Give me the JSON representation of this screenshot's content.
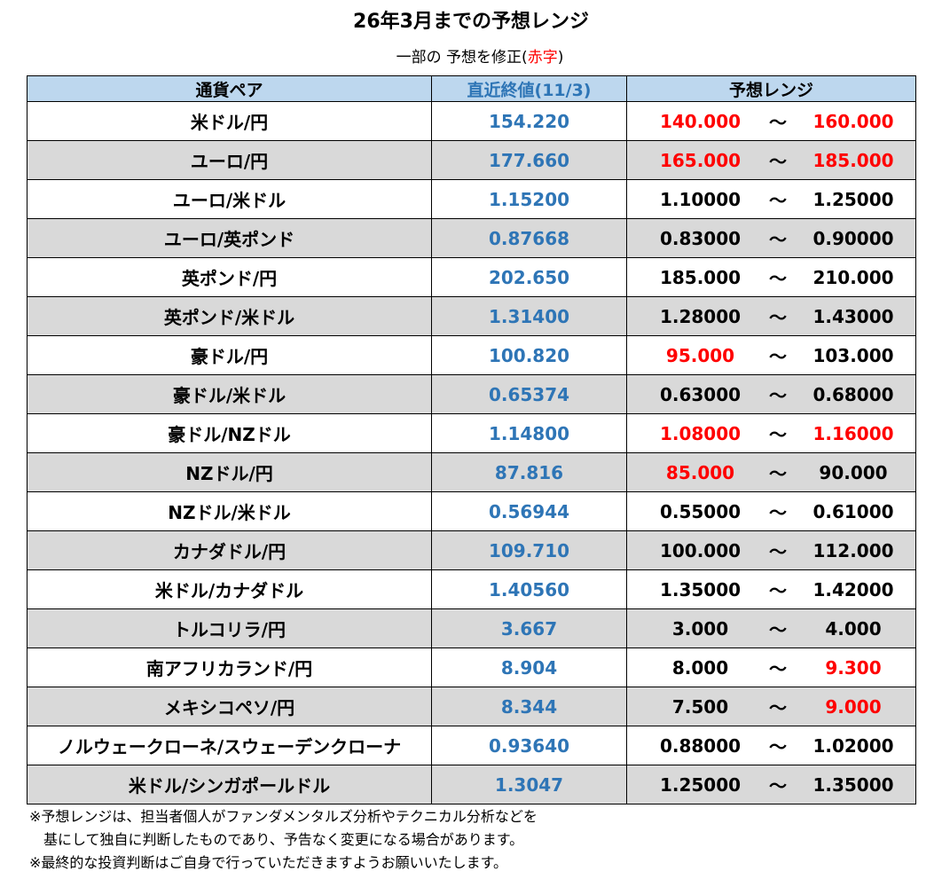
{
  "title": "26年3月までの予想レンジ",
  "subtitle": {
    "prefix": "一部の 予想を修正(",
    "red": "赤字",
    "suffix": ")"
  },
  "headers": {
    "pair": "通貨ペア",
    "latest": "直近終値(11/3)",
    "range": "予想レンジ"
  },
  "colors": {
    "header_bg": "#bdd7ee",
    "alt_row": "#d9d9d9",
    "latest": "#2e75b6",
    "revised": "#ff0000"
  },
  "tilde": "～",
  "rows": [
    {
      "pair": "米ドル/円",
      "latest": "154.220",
      "low": "140.000",
      "high": "160.000",
      "low_revised": true,
      "high_revised": true
    },
    {
      "pair": "ユーロ/円",
      "latest": "177.660",
      "low": "165.000",
      "high": "185.000",
      "low_revised": true,
      "high_revised": true
    },
    {
      "pair": "ユーロ/米ドル",
      "latest": "1.15200",
      "low": "1.10000",
      "high": "1.25000",
      "low_revised": false,
      "high_revised": false
    },
    {
      "pair": "ユーロ/英ポンド",
      "latest": "0.87668",
      "low": "0.83000",
      "high": "0.90000",
      "low_revised": false,
      "high_revised": false
    },
    {
      "pair": "英ポンド/円",
      "latest": "202.650",
      "low": "185.000",
      "high": "210.000",
      "low_revised": false,
      "high_revised": false
    },
    {
      "pair": "英ポンド/米ドル",
      "latest": "1.31400",
      "low": "1.28000",
      "high": "1.43000",
      "low_revised": false,
      "high_revised": false
    },
    {
      "pair": "豪ドル/円",
      "latest": "100.820",
      "low": "95.000",
      "high": "103.000",
      "low_revised": true,
      "high_revised": false
    },
    {
      "pair": "豪ドル/米ドル",
      "latest": "0.65374",
      "low": "0.63000",
      "high": "0.68000",
      "low_revised": false,
      "high_revised": false
    },
    {
      "pair": "豪ドル/NZドル",
      "latest": "1.14800",
      "low": "1.08000",
      "high": "1.16000",
      "low_revised": true,
      "high_revised": true
    },
    {
      "pair": "NZドル/円",
      "latest": "87.816",
      "low": "85.000",
      "high": "90.000",
      "low_revised": true,
      "high_revised": false
    },
    {
      "pair": "NZドル/米ドル",
      "latest": "0.56944",
      "low": "0.55000",
      "high": "0.61000",
      "low_revised": false,
      "high_revised": false
    },
    {
      "pair": "カナダドル/円",
      "latest": "109.710",
      "low": "100.000",
      "high": "112.000",
      "low_revised": false,
      "high_revised": false
    },
    {
      "pair": "米ドル/カナダドル",
      "latest": "1.40560",
      "low": "1.35000",
      "high": "1.42000",
      "low_revised": false,
      "high_revised": false
    },
    {
      "pair": "トルコリラ/円",
      "latest": "3.667",
      "low": "3.000",
      "high": "4.000",
      "low_revised": false,
      "high_revised": false
    },
    {
      "pair": "南アフリカランド/円",
      "latest": "8.904",
      "low": "8.000",
      "high": "9.300",
      "low_revised": false,
      "high_revised": true
    },
    {
      "pair": "メキシコペソ/円",
      "latest": "8.344",
      "low": "7.500",
      "high": "9.000",
      "low_revised": false,
      "high_revised": true
    },
    {
      "pair": "ノルウェークローネ/スウェーデンクローナ",
      "latest": "0.93640",
      "low": "0.88000",
      "high": "1.02000",
      "low_revised": false,
      "high_revised": false
    },
    {
      "pair": "米ドル/シンガポールドル",
      "latest": "1.3047",
      "low": "1.25000",
      "high": "1.35000",
      "low_revised": false,
      "high_revised": false
    }
  ],
  "notes": [
    "※予想レンジは、担当者個人がファンダメンタルズ分析やテクニカル分析などを",
    "　基にして独自に判断したものであり、予告なく変更になる場合があります。",
    "※最終的な投資判断はご自身で行っていただきますようお願いいたします。"
  ]
}
